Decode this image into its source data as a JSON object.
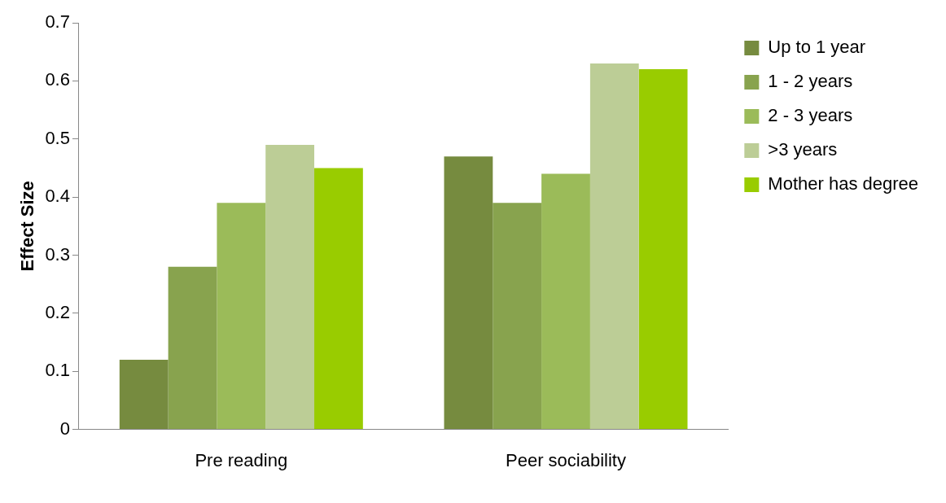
{
  "chart_data": {
    "type": "bar",
    "ylabel": "Effect Size",
    "categories": [
      "Pre reading",
      "Peer sociability"
    ],
    "series": [
      {
        "name": "Up to 1 year",
        "color": "#768b3f",
        "values": [
          0.12,
          0.47
        ]
      },
      {
        "name": "1 - 2 years",
        "color": "#88a34e",
        "values": [
          0.28,
          0.39
        ]
      },
      {
        "name": "2 - 3 years",
        "color": "#9bbb59",
        "values": [
          0.39,
          0.44
        ]
      },
      {
        "name": ">3 years",
        "color": "#bccd96",
        "values": [
          0.49,
          0.63
        ]
      },
      {
        "name": "Mother has degree",
        "color": "#99cc00",
        "values": [
          0.45,
          0.62
        ]
      }
    ],
    "ylim": [
      0,
      0.7
    ],
    "yticks": [
      0,
      0.1,
      0.2,
      0.3,
      0.4,
      0.5,
      0.6,
      0.7
    ],
    "grid": false,
    "legend": "top right"
  }
}
